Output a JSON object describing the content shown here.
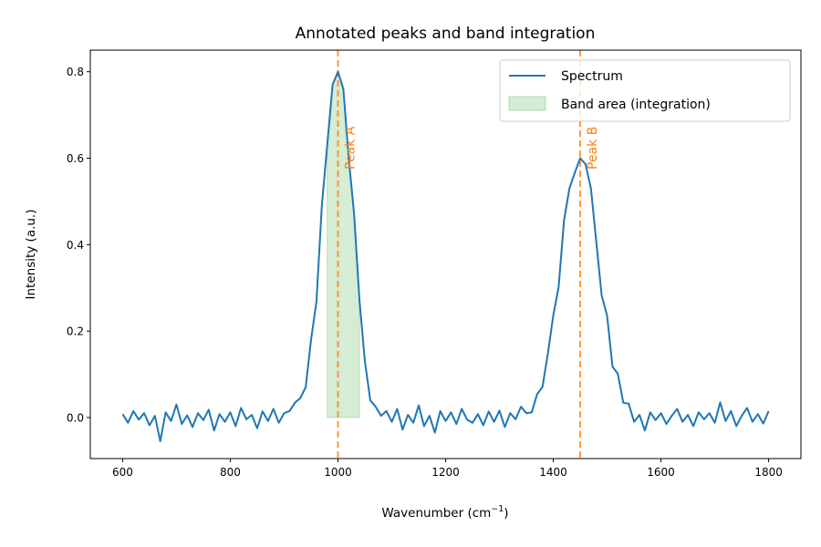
{
  "chart_data": {
    "type": "line",
    "title": "Annotated peaks and band integration",
    "xlabel": "Wavenumber (cm",
    "xlabel_sup": "−1",
    "xlabel_suffix": ")",
    "ylabel": "Intensity (a.u.)",
    "xlim": [
      540,
      1860
    ],
    "ylim": [
      -0.095,
      0.85
    ],
    "xticks": [
      600,
      800,
      1000,
      1200,
      1400,
      1600,
      1800
    ],
    "xtick_labels": [
      "600",
      "800",
      "1000",
      "1200",
      "1400",
      "1600",
      "1800"
    ],
    "yticks": [
      0.0,
      0.2,
      0.4,
      0.6,
      0.8
    ],
    "ytick_labels": [
      "0.0",
      "0.2",
      "0.4",
      "0.6",
      "0.8"
    ],
    "grid": false,
    "legend_placement": "upper-right",
    "legend": [
      "Spectrum",
      "Band area (integration)"
    ],
    "series": [
      {
        "name": "Spectrum",
        "color": "#1f77b4",
        "x": [
          600,
          610,
          620,
          630,
          640,
          650,
          660,
          670,
          680,
          690,
          700,
          710,
          720,
          730,
          740,
          750,
          760,
          770,
          780,
          790,
          800,
          810,
          820,
          830,
          840,
          850,
          860,
          870,
          880,
          890,
          900,
          910,
          920,
          930,
          940,
          950,
          960,
          970,
          980,
          990,
          1000,
          1010,
          1020,
          1030,
          1040,
          1050,
          1060,
          1070,
          1080,
          1090,
          1100,
          1110,
          1120,
          1130,
          1140,
          1150,
          1160,
          1170,
          1180,
          1190,
          1200,
          1210,
          1220,
          1230,
          1240,
          1250,
          1260,
          1270,
          1280,
          1290,
          1300,
          1310,
          1320,
          1330,
          1340,
          1350,
          1360,
          1370,
          1380,
          1390,
          1400,
          1410,
          1420,
          1430,
          1440,
          1450,
          1460,
          1470,
          1480,
          1490,
          1500,
          1510,
          1520,
          1530,
          1540,
          1550,
          1560,
          1570,
          1580,
          1590,
          1600,
          1610,
          1620,
          1630,
          1640,
          1650,
          1660,
          1670,
          1680,
          1690,
          1700,
          1710,
          1720,
          1730,
          1740,
          1750,
          1760,
          1770,
          1780,
          1790,
          1800
        ],
        "y": [
          0.008,
          -0.012,
          0.015,
          -0.005,
          0.01,
          -0.018,
          0.004,
          -0.055,
          0.012,
          -0.008,
          0.03,
          -0.015,
          0.005,
          -0.022,
          0.01,
          -0.006,
          0.018,
          -0.03,
          0.008,
          -0.01,
          0.012,
          -0.02,
          0.022,
          -0.004,
          0.006,
          -0.025,
          0.014,
          -0.008,
          0.02,
          -0.012,
          0.01,
          0.015,
          0.034,
          0.045,
          0.07,
          0.18,
          0.268,
          0.49,
          0.63,
          0.77,
          0.8,
          0.76,
          0.6,
          0.47,
          0.27,
          0.13,
          0.04,
          0.025,
          0.004,
          0.015,
          -0.01,
          0.02,
          -0.028,
          0.006,
          -0.012,
          0.028,
          -0.02,
          0.004,
          -0.035,
          0.015,
          -0.008,
          0.012,
          -0.015,
          0.02,
          -0.005,
          -0.012,
          0.008,
          -0.018,
          0.014,
          -0.01,
          0.016,
          -0.022,
          0.01,
          -0.004,
          0.025,
          0.01,
          0.012,
          0.054,
          0.071,
          0.148,
          0.236,
          0.302,
          0.456,
          0.53,
          0.566,
          0.6,
          0.586,
          0.53,
          0.406,
          0.282,
          0.236,
          0.118,
          0.101,
          0.034,
          0.032,
          -0.01,
          0.006,
          -0.03,
          0.012,
          -0.006,
          0.01,
          -0.015,
          0.004,
          0.02,
          -0.01,
          0.006,
          -0.02,
          0.012,
          -0.004,
          0.01,
          -0.012,
          0.035,
          -0.008,
          0.015,
          -0.02,
          0.004,
          0.022,
          -0.01,
          0.008,
          -0.014,
          0.015
        ]
      }
    ],
    "band": {
      "name": "Band area (integration)",
      "from": 980,
      "to": 1040,
      "color": "#2ca02c"
    },
    "annotations": [
      {
        "label": "Peak A",
        "x": 1000,
        "color": "#ff7f0e"
      },
      {
        "label": "Peak B",
        "x": 1450,
        "color": "#ff7f0e"
      }
    ]
  }
}
